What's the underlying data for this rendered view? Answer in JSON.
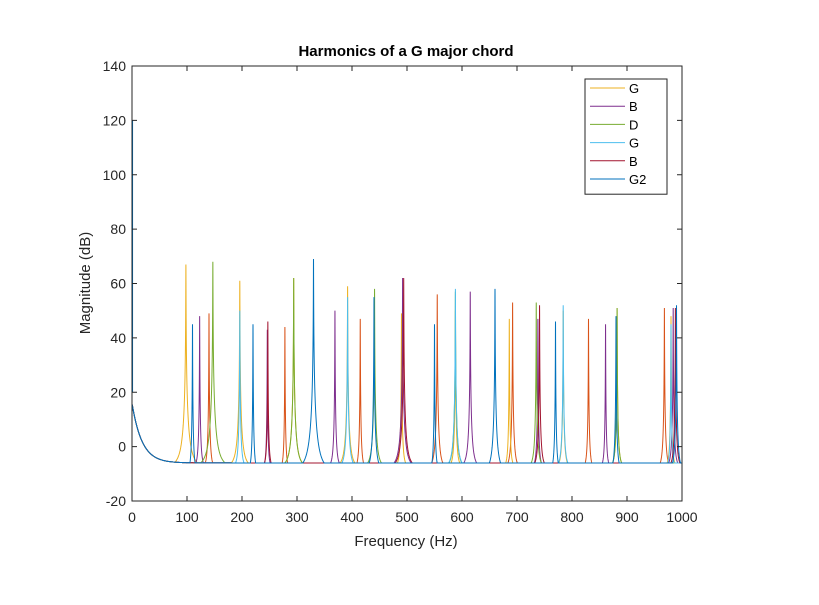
{
  "chart_data": {
    "type": "line",
    "title": "Harmonics of a G major chord",
    "xlabel": "Frequency (Hz)",
    "ylabel": "Magnitude (dB)",
    "xlim": [
      0,
      1000
    ],
    "ylim": [
      -20,
      140
    ],
    "xticks": [
      0,
      100,
      200,
      300,
      400,
      500,
      600,
      700,
      800,
      900,
      1000
    ],
    "yticks": [
      -20,
      0,
      20,
      40,
      60,
      80,
      100,
      120,
      140
    ],
    "grid": false,
    "legend_position": "top-right",
    "series": [
      {
        "name": "G",
        "color": "#EDB120",
        "fundamental": 98,
        "peaks_db": [
          67,
          61,
          62,
          59,
          49,
          50,
          47,
          50,
          51,
          48
        ]
      },
      {
        "name": "B",
        "color": "#7E2F8E",
        "fundamental": 123,
        "peaks_db": [
          48,
          43,
          50,
          62,
          57,
          47,
          45,
          51
        ]
      },
      {
        "name": "D",
        "color": "#77AC30",
        "fundamental": 147,
        "peaks_db": [
          68,
          62,
          58,
          57,
          53,
          51
        ]
      },
      {
        "name": "G",
        "color": "#4DBEEE",
        "fundamental": 196,
        "peaks_db": [
          50,
          55,
          58,
          52,
          45
        ]
      },
      {
        "name": "B",
        "color": "#A2142F",
        "fundamental": 247,
        "peaks_db": [
          46,
          62,
          52,
          51
        ]
      },
      {
        "name": "G2",
        "color": "#0072BD",
        "fundamental": 110,
        "peaks_db": [
          45,
          45,
          69,
          55,
          45,
          58,
          46,
          48,
          52
        ]
      }
    ],
    "extra_lines": [
      {
        "color": "#D95319",
        "peaks": [
          [
            140,
            49
          ],
          [
            278,
            44
          ],
          [
            415,
            47
          ],
          [
            555,
            56
          ],
          [
            692,
            53
          ],
          [
            830,
            47
          ],
          [
            968,
            51
          ]
        ]
      }
    ],
    "lowfreq_spike_db": 120,
    "broad_dip_floor_db": -12
  }
}
